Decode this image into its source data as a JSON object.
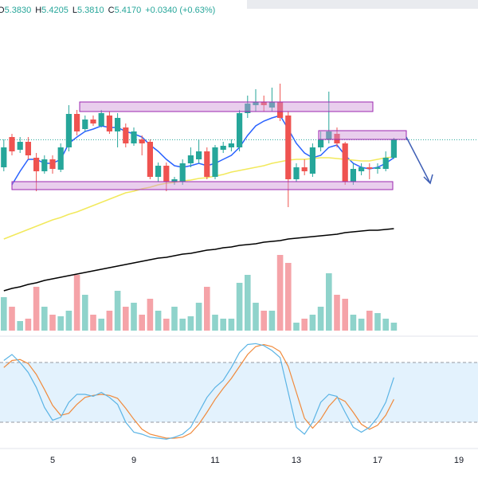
{
  "chart_data": {
    "type": "candlestick",
    "header": {
      "items": [
        {
          "key": "O",
          "value": "5.3830"
        },
        {
          "key": "H",
          "value": "5.4205"
        },
        {
          "key": "L",
          "value": "5.3810"
        },
        {
          "key": "C",
          "value": "5.4170"
        }
      ],
      "change": "+0.0340 (+0.63%)"
    },
    "categories": [
      null,
      null,
      null,
      null,
      null,
      null,
      "5",
      null,
      null,
      null,
      null,
      null,
      null,
      null,
      null,
      null,
      "9",
      null,
      null,
      null,
      null,
      null,
      null,
      null,
      null,
      null,
      "11",
      null,
      null,
      null,
      null,
      null,
      null,
      null,
      null,
      null,
      "13",
      null,
      null,
      null,
      null,
      null,
      null,
      null,
      null,
      null,
      "17",
      null,
      null,
      null,
      null,
      null,
      null,
      null,
      null,
      null,
      "19"
    ],
    "open": [
      5.365,
      5.422,
      5.398,
      5.413,
      5.383,
      5.3575,
      5.38,
      5.3605,
      5.4025,
      5.4655,
      5.437,
      5.455,
      5.443,
      5.4625,
      5.4325,
      5.44,
      5.41,
      5.4175,
      5.413,
      5.347,
      5.368,
      5.338,
      5.338,
      5.3725,
      5.38,
      5.395,
      5.347,
      5.398,
      5.4025,
      5.4025,
      5.467,
      5.482,
      5.488,
      5.4775,
      5.488,
      5.4625,
      5.3425,
      5.365,
      5.353,
      5.4025,
      5.4175,
      5.428,
      5.41,
      5.338,
      5.3575,
      5.365,
      5.362,
      5.362,
      5.383,
      null,
      null,
      null,
      null,
      null,
      null,
      null,
      null
    ],
    "high": [
      5.4175,
      5.428,
      5.422,
      5.422,
      5.392,
      5.3875,
      5.3875,
      5.41,
      5.482,
      5.473,
      5.4625,
      5.4625,
      5.473,
      5.47,
      5.467,
      5.4475,
      5.44,
      5.425,
      5.4175,
      5.374,
      5.374,
      5.347,
      5.38,
      5.4025,
      5.4175,
      5.4025,
      5.407,
      5.413,
      5.4175,
      5.473,
      5.5,
      5.512,
      5.5,
      5.515,
      5.5225,
      5.47,
      5.3725,
      5.38,
      5.41,
      5.4325,
      5.5075,
      5.44,
      5.413,
      5.3725,
      5.3725,
      5.3725,
      5.3725,
      5.395,
      5.4205,
      null,
      null,
      null,
      null,
      null,
      null,
      null,
      null
    ],
    "low": [
      5.3575,
      5.3875,
      5.392,
      5.38,
      5.32,
      5.353,
      5.353,
      5.356,
      5.395,
      5.425,
      5.4325,
      5.443,
      5.44,
      5.428,
      5.4025,
      5.4025,
      5.4055,
      5.3875,
      5.3425,
      5.338,
      5.32,
      5.332,
      5.332,
      5.365,
      5.3725,
      5.3425,
      5.3425,
      5.392,
      5.395,
      5.395,
      5.458,
      5.47,
      5.47,
      5.47,
      5.452,
      5.29,
      5.338,
      5.35,
      5.347,
      5.395,
      5.41,
      5.4025,
      5.332,
      5.332,
      5.35,
      5.3425,
      5.353,
      5.3575,
      5.381,
      null,
      null,
      null,
      null,
      null,
      null,
      null,
      null
    ],
    "close": [
      5.4025,
      5.395,
      5.413,
      5.3875,
      5.3575,
      5.38,
      5.362,
      5.4025,
      5.4655,
      5.4325,
      5.455,
      5.4475,
      5.467,
      5.4325,
      5.458,
      5.41,
      5.4325,
      5.41,
      5.347,
      5.368,
      5.338,
      5.3425,
      5.3725,
      5.3875,
      5.395,
      5.347,
      5.4025,
      5.4055,
      5.41,
      5.467,
      5.485,
      5.488,
      5.482,
      5.488,
      5.458,
      5.3425,
      5.365,
      5.3575,
      5.4025,
      5.4175,
      5.4325,
      5.41,
      5.338,
      5.362,
      5.365,
      5.362,
      5.365,
      5.383,
      5.417,
      null,
      null,
      null,
      null,
      null,
      null,
      null,
      null
    ],
    "up_color": "#26a69a",
    "down_color": "#ef5350",
    "ylim": [
      5.05,
      5.68
    ],
    "series": [
      {
        "color": "#2962ff",
        "values": [
          null,
          5.332,
          5.3575,
          5.38,
          5.38,
          5.3725,
          5.3725,
          5.38,
          5.41,
          5.422,
          5.4325,
          5.437,
          5.443,
          5.44,
          5.44,
          5.4325,
          5.428,
          5.422,
          5.407,
          5.395,
          5.38,
          5.368,
          5.365,
          5.368,
          5.3725,
          5.368,
          5.3725,
          5.38,
          5.3875,
          5.4025,
          5.425,
          5.443,
          5.452,
          5.458,
          5.4625,
          5.437,
          5.41,
          5.392,
          5.383,
          5.3875,
          5.4025,
          5.407,
          5.3875,
          5.3725,
          5.365,
          5.362,
          5.365,
          5.3725,
          5.383,
          null,
          null,
          null,
          null,
          null,
          null,
          null,
          null
        ]
      },
      {
        "color": "#f2e95c",
        "values": [
          5.23,
          5.236,
          5.242,
          5.248,
          5.254,
          5.26,
          5.266,
          5.2705,
          5.2765,
          5.281,
          5.287,
          5.293,
          5.299,
          5.305,
          5.311,
          5.317,
          5.32,
          5.3245,
          5.3275,
          5.332,
          5.335,
          5.3365,
          5.3395,
          5.341,
          5.344,
          5.3455,
          5.3485,
          5.3515,
          5.356,
          5.359,
          5.362,
          5.365,
          5.368,
          5.3725,
          5.3755,
          5.3785,
          5.38,
          5.38,
          5.3815,
          5.383,
          5.383,
          5.3815,
          5.38,
          5.3785,
          5.377,
          5.377,
          5.38,
          5.383,
          5.3845,
          null,
          null,
          null,
          null,
          null,
          null,
          null,
          null
        ]
      },
      {
        "color": "#000000",
        "values": [
          5.1325,
          5.137,
          5.14,
          5.1445,
          5.1475,
          5.152,
          5.155,
          5.158,
          5.161,
          5.164,
          5.167,
          5.17,
          5.173,
          5.176,
          5.179,
          5.182,
          5.185,
          5.188,
          5.191,
          5.194,
          5.1955,
          5.1985,
          5.2015,
          5.203,
          5.206,
          5.209,
          5.2105,
          5.2135,
          5.215,
          5.218,
          5.2195,
          5.221,
          5.224,
          5.2255,
          5.227,
          5.23,
          5.2315,
          5.233,
          5.2345,
          5.236,
          5.2375,
          5.239,
          5.242,
          5.2435,
          5.245,
          5.2465,
          5.2465,
          5.248,
          5.2495,
          null,
          null,
          null,
          null,
          null,
          null,
          null,
          null
        ]
      }
    ],
    "volume": {
      "ylim": [
        0,
        100
      ],
      "up_color": "#8fd3cb",
      "down_color": "#f5a3a8",
      "values": [
        42,
        30,
        12,
        15,
        55,
        30,
        20,
        18,
        25,
        70,
        45,
        20,
        15,
        25,
        50,
        30,
        35,
        20,
        40,
        25,
        15,
        30,
        15,
        18,
        35,
        55,
        20,
        15,
        15,
        60,
        70,
        35,
        25,
        25,
        95,
        85,
        10,
        15,
        20,
        30,
        72,
        45,
        40,
        20,
        15,
        25,
        22,
        15,
        10,
        null,
        null,
        null,
        null,
        null,
        null,
        null,
        null
      ]
    },
    "stochastic": {
      "ylim": [
        0,
        100
      ],
      "levels": [
        20,
        80
      ],
      "band_color": "#e3f2fd",
      "k": {
        "color": "#5bb4e5",
        "values": [
          82,
          88,
          80,
          70,
          55,
          35,
          22,
          25,
          40,
          48,
          48,
          46,
          50,
          45,
          38,
          20,
          10,
          8,
          5,
          4,
          3,
          5,
          8,
          15,
          30,
          45,
          55,
          62,
          75,
          90,
          98,
          99,
          97,
          92,
          85,
          50,
          15,
          8,
          20,
          40,
          48,
          46,
          30,
          15,
          10,
          15,
          25,
          40,
          65,
          null,
          null,
          null,
          null,
          null,
          null,
          null,
          null
        ]
      },
      "d": {
        "color": "#f08a3c",
        "values": [
          75,
          82,
          83,
          79,
          68,
          53,
          37,
          27,
          29,
          38,
          45,
          47,
          48,
          47,
          44,
          34,
          23,
          13,
          8,
          6,
          4,
          4,
          5,
          9,
          18,
          30,
          43,
          54,
          64,
          76,
          88,
          96,
          98,
          96,
          91,
          76,
          50,
          24,
          14,
          23,
          36,
          45,
          41,
          30,
          18,
          13,
          17,
          27,
          43,
          null,
          null,
          null,
          null,
          null,
          null,
          null,
          null
        ]
      }
    }
  }
}
